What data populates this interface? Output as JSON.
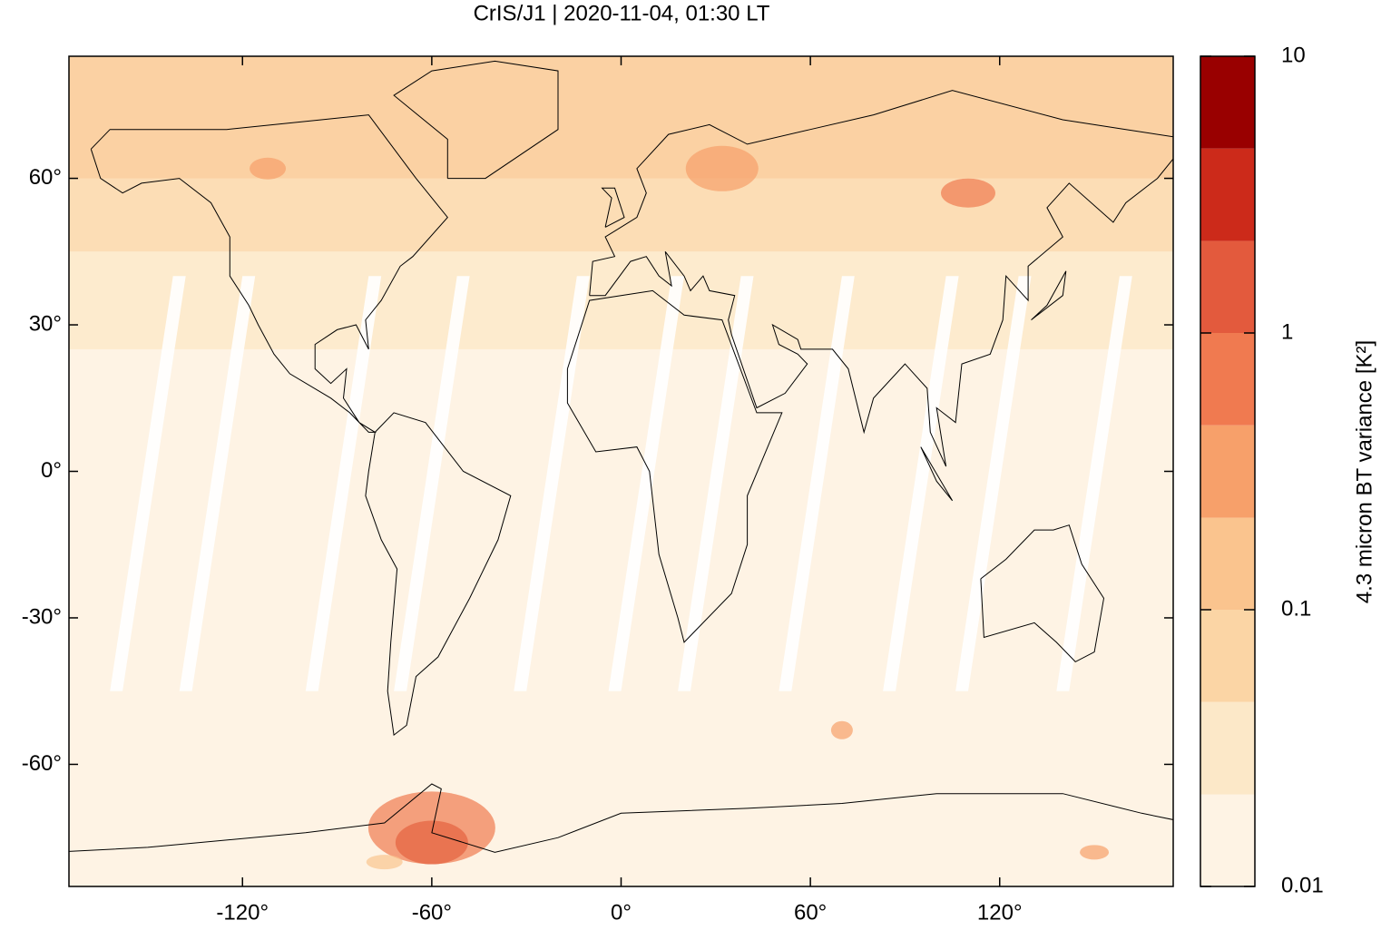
{
  "chart_data": {
    "type": "heatmap",
    "title": "CrIS/J1 | 2020-11-04, 01:30 LT",
    "xlim": [
      -175,
      175
    ],
    "ylim": [
      -85,
      85
    ],
    "xticks": [
      {
        "value": -120,
        "label": "-120°"
      },
      {
        "value": -60,
        "label": "-60°"
      },
      {
        "value": 0,
        "label": "0°"
      },
      {
        "value": 60,
        "label": "60°"
      },
      {
        "value": 120,
        "label": "120°"
      }
    ],
    "yticks": [
      {
        "value": -60,
        "label": "-60°"
      },
      {
        "value": -30,
        "label": "-30°"
      },
      {
        "value": 0,
        "label": "0°"
      },
      {
        "value": 30,
        "label": "30°"
      },
      {
        "value": 60,
        "label": "60°"
      }
    ],
    "colorbar": {
      "label": "4.3 micron BT variance [K²]",
      "log": true,
      "lim": [
        0.01,
        10
      ],
      "ticks": [
        0.01,
        0.1,
        1,
        10
      ],
      "levels": [
        0.01,
        0.0215,
        0.0464,
        0.1,
        0.215,
        0.464,
        1,
        2.15,
        4.64,
        10
      ],
      "colors": [
        "#fef3e4",
        "#fce8c8",
        "#fbd5a5",
        "#fac48e",
        "#f7a06a",
        "#f07a50",
        "#e35a3d",
        "#cc2a1a",
        "#990000"
      ]
    }
  }
}
